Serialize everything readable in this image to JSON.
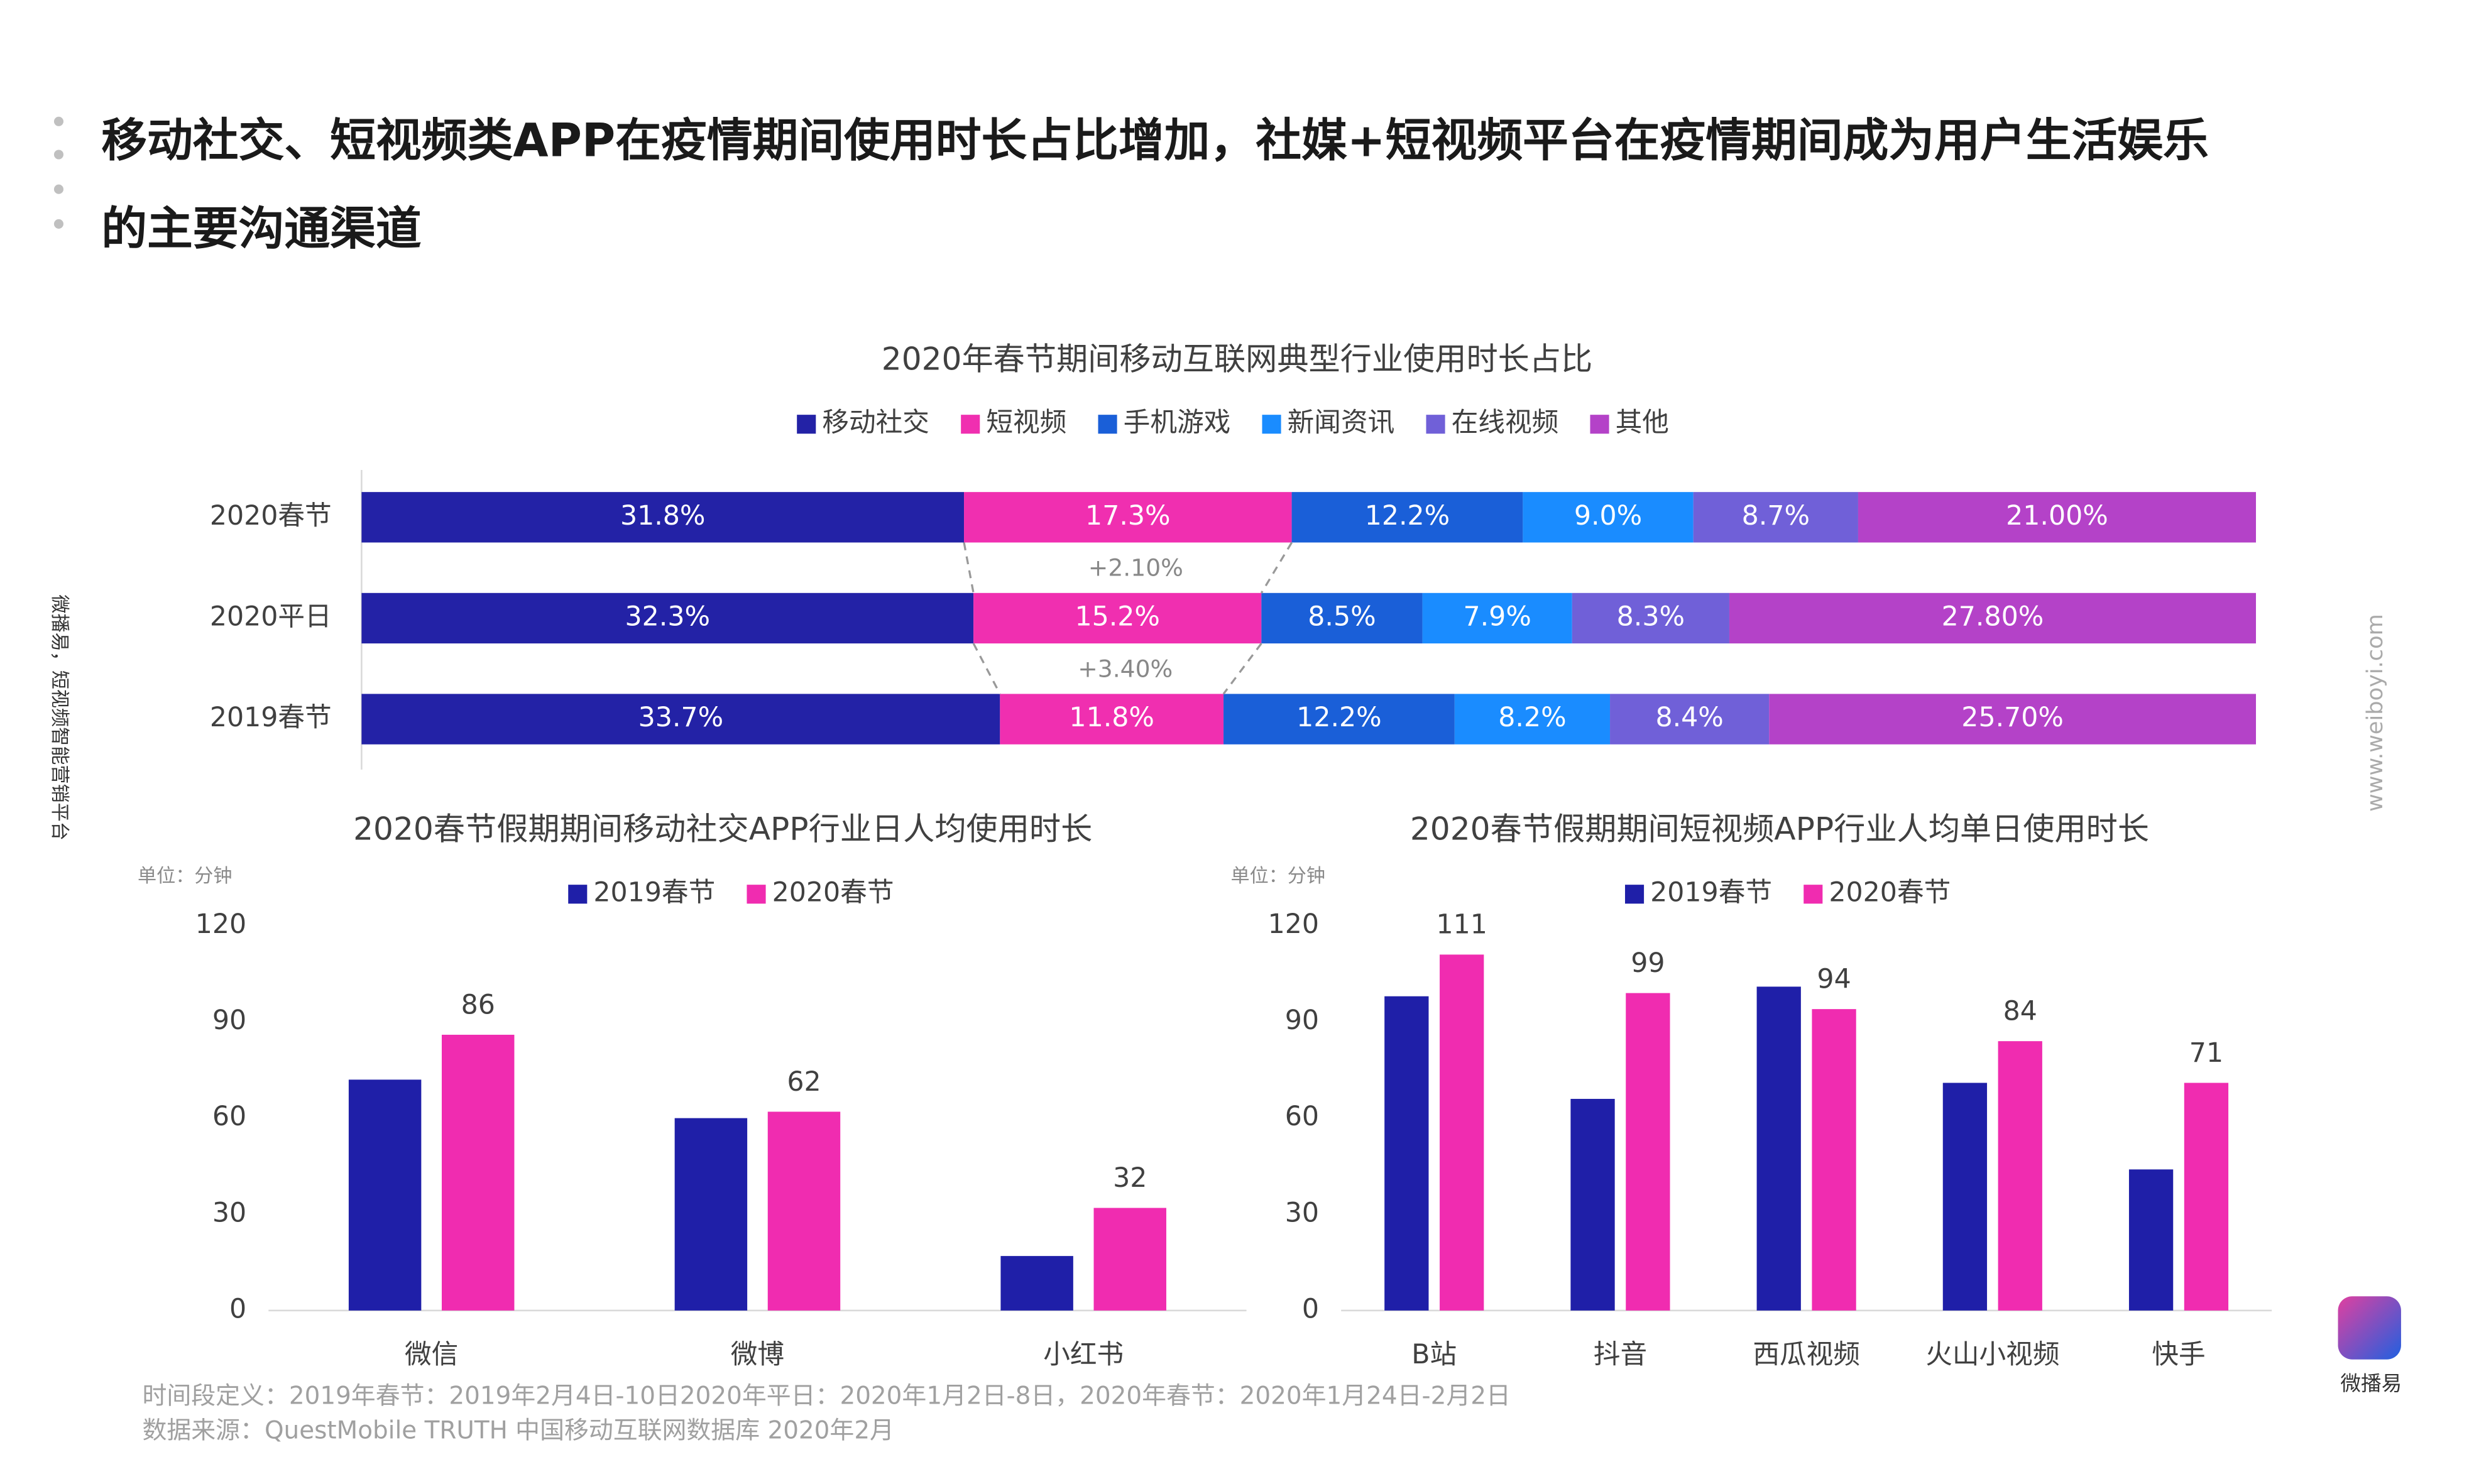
{
  "title_lines": [
    "移动社交、短视频类APP在疫情期间使用时长占比增加，社媒+短视频平台在疫情期间成为用户生活娱乐",
    "的主要沟通渠道"
  ],
  "side_text": "微播易，短视频智能营销平台",
  "url_text": "www.weiboyi.com",
  "logo_text": "微播易",
  "footnotes": [
    "时间段定义：2019年春节：2019年2月4日-10日2020年平日：2020年1月2日-8日，2020年春节：2020年1月24日-2月2日",
    "数据来源：QuestMobile TRUTH 中国移动互联网数据库 2020年2月"
  ],
  "chart_data": [
    {
      "type": "stackedbar",
      "title": "2020年春节期间移动互联网典型行业使用时长占比",
      "categories": [
        "2020春节",
        "2020平日",
        "2019春节"
      ],
      "series": [
        {
          "name": "移动社交",
          "color": "#2322a6",
          "values": [
            31.8,
            32.3,
            33.7
          ],
          "value_labels": [
            "31.8%",
            "32.3%",
            "33.7%"
          ]
        },
        {
          "name": "短视频",
          "color": "#f02fb0",
          "values": [
            17.3,
            15.2,
            11.8
          ],
          "value_labels": [
            "17.3%",
            "15.2%",
            "11.8%"
          ]
        },
        {
          "name": "手机游戏",
          "color": "#1a5fd8",
          "values": [
            12.2,
            8.5,
            12.2
          ],
          "value_labels": [
            "12.2%",
            "8.5%",
            "12.2%"
          ]
        },
        {
          "name": "新闻资讯",
          "color": "#1a8cff",
          "values": [
            9.0,
            7.9,
            8.2
          ],
          "value_labels": [
            "9.0%",
            "7.9%",
            "8.2%"
          ]
        },
        {
          "name": "在线视频",
          "color": "#7060d8",
          "values": [
            8.7,
            8.3,
            8.4
          ],
          "value_labels": [
            "8.7%",
            "8.3%",
            "8.4%"
          ]
        },
        {
          "name": "其他",
          "color": "#b442c8",
          "values": [
            21.0,
            27.8,
            25.7
          ],
          "value_labels": [
            "21.00%",
            "27.80%",
            "25.70%"
          ]
        }
      ],
      "annotations": [
        "+2.10%",
        "+3.40%"
      ]
    },
    {
      "type": "bar",
      "title": "2020春节假期期间移动社交APP行业日人均使用时长",
      "unit": "单位：分钟",
      "categories": [
        "微信",
        "微博",
        "小红书"
      ],
      "series": [
        {
          "name": "2019春节",
          "color": "#1f1fa8",
          "values": [
            72,
            60,
            17
          ],
          "show_labels": false
        },
        {
          "name": "2020春节",
          "color": "#f02cb0",
          "values": [
            86,
            62,
            32
          ],
          "show_labels": true
        }
      ],
      "ylim": [
        0,
        120
      ],
      "yticks": [
        0,
        30,
        60,
        90,
        120
      ]
    },
    {
      "type": "bar",
      "title": "2020春节假期期间短视频APP行业人均单日使用时长",
      "unit": "单位：分钟",
      "categories": [
        "B站",
        "抖音",
        "西瓜视频",
        "火山小视频",
        "快手"
      ],
      "series": [
        {
          "name": "2019春节",
          "color": "#1f1fa8",
          "values": [
            98,
            66,
            101,
            71,
            44
          ],
          "show_labels": false
        },
        {
          "name": "2020春节",
          "color": "#f02cb0",
          "values": [
            111,
            99,
            94,
            84,
            71
          ],
          "show_labels": true
        }
      ],
      "ylim": [
        0,
        120
      ],
      "yticks": [
        0,
        30,
        60,
        90,
        120
      ]
    }
  ]
}
